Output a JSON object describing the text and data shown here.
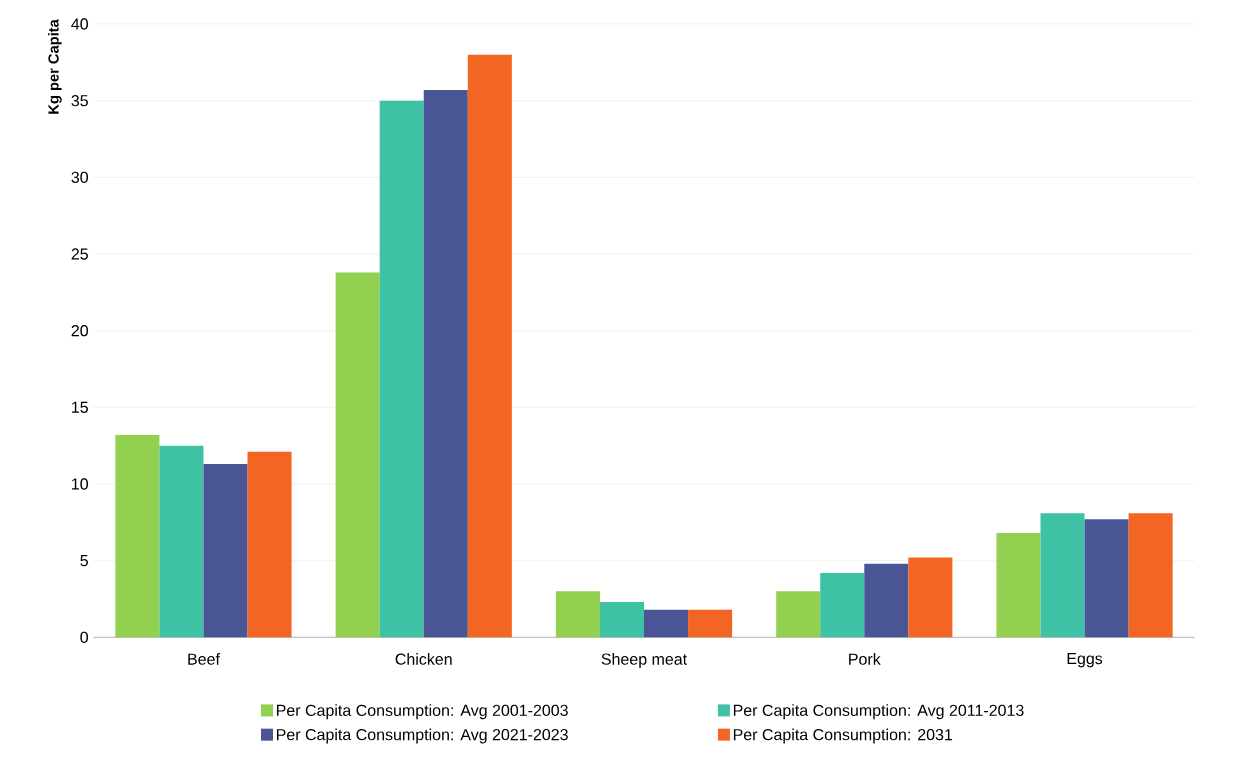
{
  "chart_data": {
    "type": "bar",
    "ylabel": "Kg per Capita",
    "categories": [
      "Beef",
      "Chicken",
      "Sheep meat",
      "Pork",
      "Eggs"
    ],
    "series": [
      {
        "name": "Per Capita Consumption: Avg 2001-2003",
        "color": "#92d050",
        "values": [
          13.2,
          23.8,
          3.0,
          3.0,
          6.8
        ]
      },
      {
        "name": "Per Capita Consumption: Avg 2011-2013",
        "color": "#3fc1a5",
        "values": [
          12.5,
          35.0,
          2.3,
          4.2,
          8.1
        ]
      },
      {
        "name": "Per Capita Consumption: Avg 2021-2023",
        "color": "#4a5595",
        "values": [
          11.3,
          35.7,
          1.8,
          4.8,
          7.7
        ]
      },
      {
        "name": "Per Capita Consumption: 2031",
        "color": "#f26522",
        "values": [
          12.1,
          38.0,
          1.8,
          5.2,
          8.1
        ]
      }
    ],
    "ylim": [
      0,
      40
    ],
    "yticks": [
      0,
      5,
      10,
      15,
      20,
      25,
      30,
      35,
      40
    ],
    "grid": "y",
    "legend": "bottom"
  }
}
